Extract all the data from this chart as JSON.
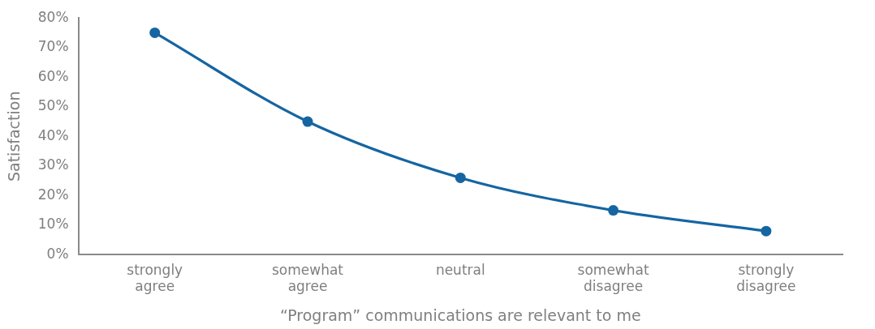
{
  "chart_data": {
    "type": "line",
    "xlabel": "“Program” communications are relevant to me",
    "ylabel": "Satisfaction",
    "categories": [
      "strongly agree",
      "somewhat agree",
      "neutral",
      "somewhat disagree",
      "strongly disagree"
    ],
    "series": [
      {
        "color": "#1565a2",
        "values": [
          75,
          45,
          26,
          15,
          8
        ]
      }
    ],
    "ylim": [
      0,
      80
    ],
    "yticks": [
      {
        "value": 0,
        "label": "0%"
      },
      {
        "value": 10,
        "label": "10%"
      },
      {
        "value": 20,
        "label": "20%"
      },
      {
        "value": 30,
        "label": "30%"
      },
      {
        "value": 40,
        "label": "40%"
      },
      {
        "value": 50,
        "label": "50%"
      },
      {
        "value": 60,
        "label": "60%"
      },
      {
        "value": 70,
        "label": "70%"
      },
      {
        "value": 80,
        "label": "80%"
      }
    ],
    "grid": false,
    "legend": false,
    "marker": "circle",
    "line_style": "solid"
  }
}
